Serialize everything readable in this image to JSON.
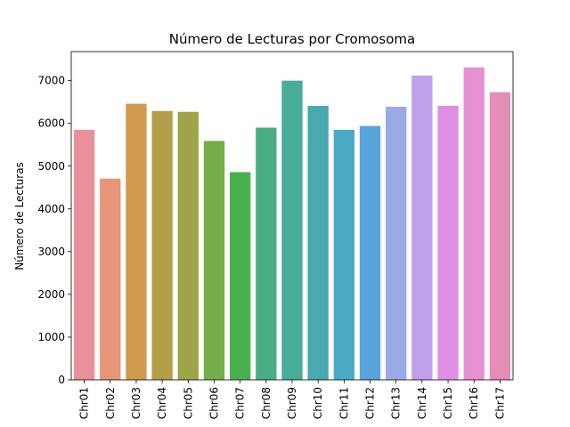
{
  "chart_data": {
    "type": "bar",
    "title": "Número de Lecturas por Cromosoma",
    "xlabel": "",
    "ylabel": "Número de Lecturas",
    "ylim": [
      0,
      7680
    ],
    "yticks": [
      0,
      1000,
      2000,
      3000,
      4000,
      5000,
      6000,
      7000
    ],
    "grid": false,
    "categories": [
      "Chr01",
      "Chr02",
      "Chr03",
      "Chr04",
      "Chr05",
      "Chr06",
      "Chr07",
      "Chr08",
      "Chr09",
      "Chr10",
      "Chr11",
      "Chr12",
      "Chr13",
      "Chr14",
      "Chr15",
      "Chr16",
      "Chr17"
    ],
    "values": [
      5850,
      4710,
      6460,
      6290,
      6270,
      5590,
      4860,
      5900,
      7000,
      6410,
      5850,
      5940,
      6390,
      7120,
      6410,
      7310,
      6730
    ],
    "colors": [
      "#e8919b",
      "#e5967a",
      "#d19a4f",
      "#b39e48",
      "#9da548",
      "#74ae48",
      "#49b04c",
      "#4aae85",
      "#47ad9a",
      "#48aaaf",
      "#4aaac5",
      "#58a4dd",
      "#9ba9e6",
      "#bfa0e8",
      "#de8fe3",
      "#e68fd3",
      "#e68db6"
    ]
  }
}
